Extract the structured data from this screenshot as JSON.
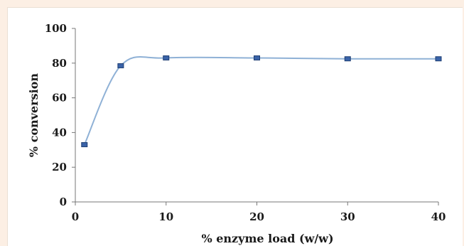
{
  "chart_data": {
    "type": "scatter",
    "title": "",
    "xlabel": "% enzyme load (w/w)",
    "ylabel": "% conversion",
    "xlim": [
      0,
      40
    ],
    "ylim": [
      0,
      100
    ],
    "x_ticks": [
      0,
      10,
      20,
      30,
      40
    ],
    "y_ticks": [
      0,
      20,
      40,
      60,
      80,
      100
    ],
    "grid": false,
    "legend": "none",
    "smooth_line": true,
    "series": [
      {
        "x": [
          1,
          5,
          10,
          20,
          30,
          40
        ],
        "y": [
          33,
          78.5,
          83,
          83,
          82.5,
          82.5
        ],
        "line_color": "#8fb1d6",
        "marker_color": "#3a63a8"
      }
    ]
  }
}
